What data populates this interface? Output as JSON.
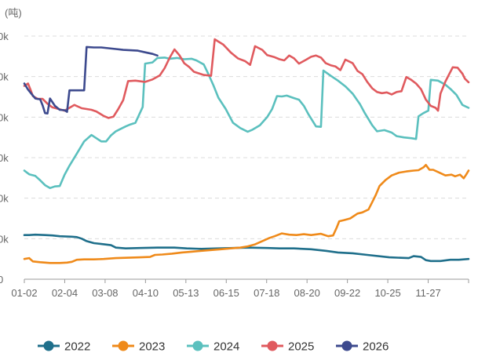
{
  "chart_data": {
    "type": "line",
    "unit_label": "(吨)",
    "x_tick_labels": [
      "01-02",
      "02-04",
      "03-08",
      "04-10",
      "05-13",
      "06-15",
      "07-18",
      "08-20",
      "09-22",
      "10-25",
      "11-27"
    ],
    "y_tick_labels": [
      "0",
      "0k",
      "0k",
      "0k",
      "0k",
      "0k",
      "0k"
    ],
    "y_tick_values": [
      0,
      10,
      20,
      30,
      40,
      50,
      60
    ],
    "x_domain": [
      1,
      365
    ],
    "y_domain": [
      0,
      60
    ],
    "grid": true,
    "legend_position": "bottom",
    "series": [
      {
        "name": "2022",
        "color": "#1f6f8b",
        "points": [
          [
            1,
            10.9
          ],
          [
            5,
            10.9
          ],
          [
            10,
            11
          ],
          [
            18,
            10.9
          ],
          [
            24,
            10.8
          ],
          [
            30,
            10.6
          ],
          [
            40,
            10.5
          ],
          [
            44,
            10.4
          ],
          [
            48,
            10
          ],
          [
            52,
            9.4
          ],
          [
            58,
            8.9
          ],
          [
            64,
            8.7
          ],
          [
            72,
            8.4
          ],
          [
            76,
            7.8
          ],
          [
            84,
            7.6
          ],
          [
            96,
            7.7
          ],
          [
            110,
            7.8
          ],
          [
            124,
            7.8
          ],
          [
            134,
            7.6
          ],
          [
            146,
            7.5
          ],
          [
            160,
            7.6
          ],
          [
            172,
            7.7
          ],
          [
            184,
            7.8
          ],
          [
            200,
            7.7
          ],
          [
            210,
            7.6
          ],
          [
            222,
            7.6
          ],
          [
            236,
            7.4
          ],
          [
            248,
            7
          ],
          [
            258,
            6.6
          ],
          [
            270,
            6.4
          ],
          [
            282,
            6
          ],
          [
            300,
            5.4
          ],
          [
            316,
            5.2
          ],
          [
            320,
            5.7
          ],
          [
            326,
            5.5
          ],
          [
            330,
            4.7
          ],
          [
            334,
            4.5
          ],
          [
            342,
            4.5
          ],
          [
            350,
            4.8
          ],
          [
            357,
            4.8
          ],
          [
            365,
            5
          ]
        ]
      },
      {
        "name": "2023",
        "color": "#ef8a1a",
        "points": [
          [
            1,
            5
          ],
          [
            5,
            5.2
          ],
          [
            8,
            4.4
          ],
          [
            14,
            4.2
          ],
          [
            22,
            4
          ],
          [
            30,
            4
          ],
          [
            36,
            4.1
          ],
          [
            40,
            4.3
          ],
          [
            44,
            4.8
          ],
          [
            50,
            4.9
          ],
          [
            58,
            4.9
          ],
          [
            66,
            5
          ],
          [
            76,
            5.2
          ],
          [
            86,
            5.3
          ],
          [
            96,
            5.4
          ],
          [
            104,
            5.5
          ],
          [
            108,
            6
          ],
          [
            114,
            6.1
          ],
          [
            122,
            6.3
          ],
          [
            130,
            6.6
          ],
          [
            138,
            6.8
          ],
          [
            146,
            7
          ],
          [
            154,
            7.2
          ],
          [
            162,
            7.4
          ],
          [
            170,
            7.6
          ],
          [
            178,
            7.8
          ],
          [
            184,
            8.1
          ],
          [
            190,
            8.6
          ],
          [
            196,
            9.4
          ],
          [
            202,
            10.2
          ],
          [
            206,
            10.6
          ],
          [
            212,
            11.3
          ],
          [
            218,
            11
          ],
          [
            224,
            10.9
          ],
          [
            230,
            11.1
          ],
          [
            236,
            10.9
          ],
          [
            244,
            11.2
          ],
          [
            250,
            10.6
          ],
          [
            254,
            10.8
          ],
          [
            257,
            12.8
          ],
          [
            259,
            14.3
          ],
          [
            263,
            14.6
          ],
          [
            268,
            15
          ],
          [
            274,
            16.2
          ],
          [
            278,
            16.5
          ],
          [
            283,
            17.2
          ],
          [
            286,
            19
          ],
          [
            289,
            20.8
          ],
          [
            292,
            23
          ],
          [
            297,
            24.5
          ],
          [
            302,
            25.6
          ],
          [
            308,
            26.3
          ],
          [
            314,
            26.6
          ],
          [
            320,
            26.8
          ],
          [
            324,
            26.9
          ],
          [
            328,
            27.6
          ],
          [
            330,
            28.2
          ],
          [
            333,
            27
          ],
          [
            336,
            27
          ],
          [
            341,
            26.3
          ],
          [
            346,
            25.6
          ],
          [
            351,
            25.8
          ],
          [
            354,
            25.4
          ],
          [
            358,
            25.8
          ],
          [
            361,
            24.9
          ],
          [
            363,
            25.8
          ],
          [
            365,
            26.8
          ]
        ]
      },
      {
        "name": "2024",
        "color": "#5bc0be",
        "points": [
          [
            1,
            26.8
          ],
          [
            5,
            25.9
          ],
          [
            10,
            25.5
          ],
          [
            14,
            24.4
          ],
          [
            18,
            23.2
          ],
          [
            22,
            22.5
          ],
          [
            26,
            22.9
          ],
          [
            30,
            23
          ],
          [
            34,
            25.8
          ],
          [
            38,
            28
          ],
          [
            44,
            31
          ],
          [
            50,
            34
          ],
          [
            56,
            35.6
          ],
          [
            64,
            34
          ],
          [
            68,
            34
          ],
          [
            72,
            35.5
          ],
          [
            76,
            36.5
          ],
          [
            80,
            37.1
          ],
          [
            84,
            37.7
          ],
          [
            88,
            38.2
          ],
          [
            92,
            38.6
          ],
          [
            98,
            42.5
          ],
          [
            100,
            53.2
          ],
          [
            106,
            53.5
          ],
          [
            110,
            54.6
          ],
          [
            116,
            54.7
          ],
          [
            120,
            54.4
          ],
          [
            126,
            54.6
          ],
          [
            132,
            54.3
          ],
          [
            138,
            54.4
          ],
          [
            142,
            54
          ],
          [
            148,
            53
          ],
          [
            152,
            50.5
          ],
          [
            156,
            47.8
          ],
          [
            160,
            44.8
          ],
          [
            166,
            42
          ],
          [
            172,
            38.6
          ],
          [
            178,
            37.3
          ],
          [
            184,
            36.4
          ],
          [
            188,
            36.9
          ],
          [
            194,
            38
          ],
          [
            200,
            40
          ],
          [
            204,
            42
          ],
          [
            208,
            45.2
          ],
          [
            212,
            45.1
          ],
          [
            216,
            45.3
          ],
          [
            222,
            44.7
          ],
          [
            226,
            44.3
          ],
          [
            230,
            42.8
          ],
          [
            234,
            40.6
          ],
          [
            240,
            37.7
          ],
          [
            244,
            37.6
          ],
          [
            246,
            51.5
          ],
          [
            252,
            50.2
          ],
          [
            258,
            49
          ],
          [
            264,
            47.6
          ],
          [
            270,
            45.8
          ],
          [
            276,
            43.2
          ],
          [
            280,
            41
          ],
          [
            286,
            38
          ],
          [
            290,
            36.5
          ],
          [
            296,
            36.8
          ],
          [
            302,
            36.2
          ],
          [
            306,
            35.3
          ],
          [
            312,
            35
          ],
          [
            318,
            34.8
          ],
          [
            322,
            34.6
          ],
          [
            324,
            40.2
          ],
          [
            328,
            41
          ],
          [
            332,
            41.6
          ],
          [
            334,
            49.2
          ],
          [
            340,
            49
          ],
          [
            346,
            48
          ],
          [
            350,
            47
          ],
          [
            355,
            45.5
          ],
          [
            360,
            43
          ],
          [
            365,
            42.3
          ]
        ]
      },
      {
        "name": "2025",
        "color": "#e05a5e",
        "points": [
          [
            1,
            47.7
          ],
          [
            4,
            48.3
          ],
          [
            6,
            46.8
          ],
          [
            8,
            45.2
          ],
          [
            12,
            44.5
          ],
          [
            16,
            44.5
          ],
          [
            20,
            43.3
          ],
          [
            24,
            42.4
          ],
          [
            28,
            42.1
          ],
          [
            34,
            41.6
          ],
          [
            38,
            42.3
          ],
          [
            42,
            43
          ],
          [
            48,
            42.2
          ],
          [
            56,
            41.8
          ],
          [
            60,
            41.4
          ],
          [
            66,
            40.3
          ],
          [
            70,
            39.8
          ],
          [
            74,
            40.1
          ],
          [
            78,
            42
          ],
          [
            82,
            44.2
          ],
          [
            86,
            48.9
          ],
          [
            92,
            49
          ],
          [
            100,
            48.7
          ],
          [
            106,
            49.3
          ],
          [
            112,
            50.3
          ],
          [
            116,
            52.1
          ],
          [
            120,
            54.6
          ],
          [
            124,
            56.7
          ],
          [
            128,
            55.3
          ],
          [
            132,
            53.3
          ],
          [
            136,
            52.4
          ],
          [
            140,
            51.2
          ],
          [
            148,
            50.4
          ],
          [
            154,
            50.2
          ],
          [
            157,
            59.2
          ],
          [
            164,
            57.9
          ],
          [
            170,
            56
          ],
          [
            176,
            54.5
          ],
          [
            182,
            53.8
          ],
          [
            186,
            52.9
          ],
          [
            190,
            57.5
          ],
          [
            196,
            56.6
          ],
          [
            200,
            55.3
          ],
          [
            206,
            54.8
          ],
          [
            210,
            54.3
          ],
          [
            214,
            54
          ],
          [
            218,
            55.2
          ],
          [
            222,
            54.5
          ],
          [
            226,
            53.2
          ],
          [
            232,
            54.2
          ],
          [
            236,
            54.9
          ],
          [
            240,
            55.2
          ],
          [
            244,
            54.7
          ],
          [
            248,
            53.3
          ],
          [
            252,
            52.8
          ],
          [
            256,
            52.5
          ],
          [
            260,
            51.6
          ],
          [
            264,
            54.2
          ],
          [
            270,
            53.3
          ],
          [
            274,
            51.4
          ],
          [
            278,
            50.6
          ],
          [
            282,
            48.7
          ],
          [
            286,
            47.1
          ],
          [
            290,
            46.2
          ],
          [
            294,
            45.9
          ],
          [
            298,
            46.1
          ],
          [
            302,
            45.6
          ],
          [
            306,
            46.2
          ],
          [
            310,
            46.4
          ],
          [
            314,
            49.9
          ],
          [
            318,
            49.2
          ],
          [
            322,
            48.3
          ],
          [
            326,
            46.9
          ],
          [
            330,
            44.3
          ],
          [
            334,
            42.8
          ],
          [
            338,
            42.3
          ],
          [
            340,
            41.6
          ],
          [
            342,
            45.8
          ],
          [
            346,
            48.8
          ],
          [
            352,
            52.3
          ],
          [
            356,
            52.2
          ],
          [
            360,
            50.7
          ],
          [
            362,
            49.5
          ],
          [
            365,
            48.6
          ]
        ]
      },
      {
        "name": "2026",
        "color": "#3d4a8e",
        "points": [
          [
            1,
            48.3
          ],
          [
            4,
            46.8
          ],
          [
            7,
            45.7
          ],
          [
            10,
            44.6
          ],
          [
            14,
            44.4
          ],
          [
            16,
            42.9
          ],
          [
            18,
            41
          ],
          [
            20,
            40.9
          ],
          [
            22,
            44.6
          ],
          [
            26,
            42.8
          ],
          [
            30,
            41.8
          ],
          [
            34,
            41.7
          ],
          [
            36,
            41.3
          ],
          [
            38,
            46.6
          ],
          [
            44,
            46.6
          ],
          [
            50,
            46.6
          ],
          [
            52,
            57.3
          ],
          [
            58,
            57.2
          ],
          [
            64,
            57.2
          ],
          [
            70,
            57
          ],
          [
            76,
            56.8
          ],
          [
            82,
            56.6
          ],
          [
            88,
            56.5
          ],
          [
            94,
            56.4
          ],
          [
            100,
            56
          ],
          [
            106,
            55.6
          ],
          [
            110,
            55.2
          ]
        ]
      }
    ]
  }
}
